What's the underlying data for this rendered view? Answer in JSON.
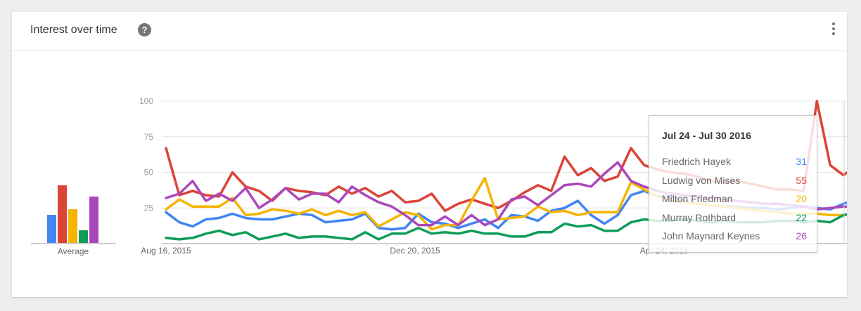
{
  "card": {
    "title": "Interest over time",
    "help_glyph": "?",
    "help_icon": "question-circle-icon",
    "menu_icon": "more-vertical-icon"
  },
  "chart_data": {
    "type": "line",
    "x_tick_labels": [
      "Aug 16, 2015",
      "Dec 20, 2015",
      "Apr 24, 2016"
    ],
    "y_ticks": [
      25,
      50,
      75,
      100
    ],
    "ylim": [
      0,
      100
    ],
    "grid": true,
    "average_label": "Average",
    "series": [
      {
        "name": "Friedrich Hayek",
        "color": "#4285f4",
        "average": 20,
        "values": [
          22,
          15,
          12,
          17,
          18,
          21,
          18,
          17,
          17,
          19,
          21,
          20,
          15,
          16,
          17,
          21,
          11,
          10,
          11,
          21,
          15,
          14,
          11,
          14,
          17,
          11,
          20,
          19,
          16,
          23,
          25,
          30,
          20,
          14,
          20,
          34,
          37,
          33,
          33,
          30,
          28,
          27,
          26,
          26,
          25,
          25,
          24,
          25,
          26,
          25,
          24,
          28,
          31
        ]
      },
      {
        "name": "Ludwig von Mises",
        "color": "#db4437",
        "average": 41,
        "values": [
          67,
          34,
          37,
          34,
          33,
          50,
          40,
          37,
          30,
          39,
          37,
          36,
          34,
          40,
          35,
          39,
          33,
          37,
          29,
          30,
          35,
          23,
          28,
          31,
          28,
          25,
          30,
          36,
          41,
          37,
          61,
          48,
          53,
          44,
          47,
          67,
          55,
          52,
          50,
          49,
          47,
          44,
          43,
          44,
          42,
          40,
          38,
          38,
          37,
          100,
          55,
          48,
          55
        ]
      },
      {
        "name": "Milton Friedman",
        "color": "#f4b400",
        "average": 24,
        "values": [
          24,
          31,
          26,
          26,
          26,
          32,
          20,
          21,
          24,
          23,
          21,
          24,
          20,
          23,
          20,
          22,
          12,
          17,
          22,
          20,
          10,
          13,
          13,
          30,
          46,
          17,
          18,
          19,
          26,
          22,
          23,
          20,
          22,
          22,
          22,
          43,
          38,
          33,
          30,
          29,
          28,
          27,
          26,
          25,
          24,
          23,
          22,
          21,
          21,
          21,
          20,
          20,
          20
        ]
      },
      {
        "name": "Murray Rothbard",
        "color": "#0f9d58",
        "average": 9,
        "values": [
          4,
          3,
          4,
          7,
          9,
          6,
          8,
          3,
          5,
          7,
          4,
          5,
          5,
          4,
          3,
          8,
          3,
          7,
          7,
          11,
          7,
          8,
          7,
          9,
          7,
          7,
          5,
          5,
          8,
          8,
          14,
          12,
          13,
          9,
          9,
          15,
          17,
          16,
          16,
          17,
          16,
          15,
          16,
          15,
          15,
          15,
          16,
          16,
          15,
          16,
          15,
          20,
          22
        ]
      },
      {
        "name": "John Maynard Keynes",
        "color": "#ab47bc",
        "average": 33,
        "values": [
          32,
          35,
          44,
          30,
          35,
          30,
          39,
          25,
          31,
          39,
          31,
          35,
          35,
          29,
          40,
          34,
          29,
          26,
          20,
          13,
          13,
          19,
          13,
          20,
          13,
          17,
          31,
          33,
          27,
          34,
          41,
          42,
          40,
          49,
          57,
          44,
          40,
          37,
          35,
          34,
          33,
          32,
          31,
          30,
          29,
          28,
          28,
          27,
          26,
          24,
          25,
          26,
          26
        ]
      }
    ]
  },
  "tooltip": {
    "date": "Jul 24 - Jul 30 2016",
    "rows": [
      {
        "name": "Friedrich Hayek",
        "value": "31",
        "color": "#4285f4"
      },
      {
        "name": "Ludwig von Mises",
        "value": "55",
        "color": "#db4437"
      },
      {
        "name": "Milton Friedman",
        "value": "20",
        "color": "#f4b400"
      },
      {
        "name": "Murray Rothbard",
        "value": "22",
        "color": "#0f9d58"
      },
      {
        "name": "John Maynard Keynes",
        "value": "26",
        "color": "#ab47bc"
      }
    ]
  }
}
